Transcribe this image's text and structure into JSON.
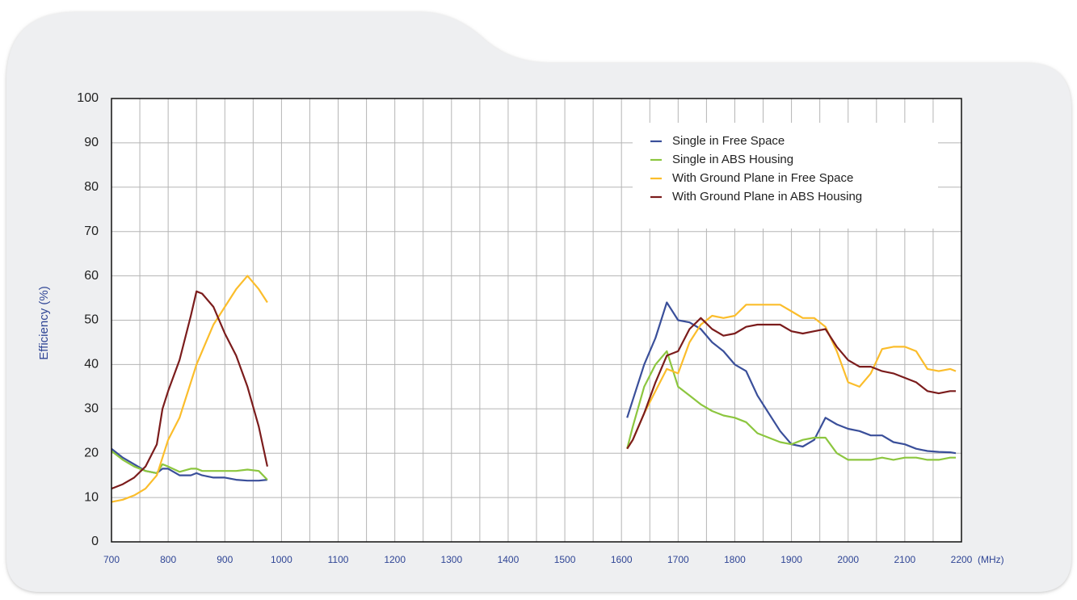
{
  "chart_data": {
    "type": "line",
    "y_label": "Efficiency (%)",
    "x_unit": "(MHz)",
    "xlim": [
      700,
      2200
    ],
    "xticks": [
      700,
      800,
      900,
      1000,
      1100,
      1200,
      1300,
      1400,
      1500,
      1600,
      1700,
      1800,
      1900,
      2000,
      2100,
      2200
    ],
    "x_minor_ticks": [
      750,
      850,
      950,
      1050,
      1150,
      1250,
      1350,
      1450,
      1550,
      1650,
      1750,
      1850,
      1950,
      2050,
      2150
    ],
    "ylim": [
      0,
      100
    ],
    "yticks": [
      0,
      10,
      20,
      30,
      40,
      50,
      60,
      70,
      80,
      90,
      100
    ],
    "grid": true,
    "legend": "upper right",
    "x": [
      700,
      720,
      740,
      760,
      780,
      790,
      800,
      820,
      840,
      850,
      860,
      880,
      900,
      920,
      940,
      960,
      975,
      1300,
      1610,
      1620,
      1640,
      1660,
      1680,
      1700,
      1720,
      1740,
      1760,
      1780,
      1800,
      1820,
      1840,
      1860,
      1880,
      1900,
      1920,
      1940,
      1960,
      1980,
      2000,
      2020,
      2040,
      2060,
      2080,
      2100,
      2120,
      2140,
      2160,
      2180,
      2190
    ],
    "series": [
      {
        "name": "Single in Free Space",
        "color": "#3a4f9a",
        "values": [
          21,
          19,
          17.5,
          16,
          15.5,
          16.5,
          16.5,
          15,
          15,
          15.5,
          15,
          14.5,
          14.5,
          14,
          13.8,
          13.8,
          14,
          null,
          28,
          32,
          40,
          46,
          54,
          50,
          49.5,
          48,
          45,
          43,
          40,
          38.5,
          33,
          29,
          25,
          22,
          21.5,
          23,
          28,
          26.5,
          25.5,
          25,
          24,
          24,
          22.5,
          22,
          21,
          20.5,
          20.3,
          20.2,
          20
        ]
      },
      {
        "name": "Single in ABS Housing",
        "color": "#8cc63f",
        "values": [
          20.5,
          18.5,
          17,
          16,
          15.5,
          17.5,
          17,
          15.8,
          16.5,
          16.5,
          16,
          16,
          16,
          16,
          16.3,
          16,
          14,
          null,
          21,
          26,
          35,
          40,
          43,
          35,
          33,
          31,
          29.5,
          28.5,
          28,
          27,
          24.5,
          23.5,
          22.5,
          22,
          23,
          23.5,
          23.5,
          20,
          18.5,
          18.5,
          18.5,
          19,
          18.5,
          19,
          19,
          18.5,
          18.5,
          19,
          19
        ]
      },
      {
        "name": "With Ground Plane in Free Space",
        "color": "#fbbd2b",
        "values": [
          9,
          9.5,
          10.5,
          12,
          15,
          19,
          23,
          28,
          36,
          40,
          43,
          49,
          53,
          57,
          60,
          57,
          54,
          null,
          21,
          23,
          29,
          34,
          39,
          38,
          45,
          49,
          51,
          50.5,
          51,
          53.5,
          53.5,
          53.5,
          53.5,
          52,
          50.5,
          50.5,
          48.5,
          43,
          36,
          35,
          38,
          43.5,
          44,
          44,
          43,
          39,
          38.5,
          39,
          38.5
        ]
      },
      {
        "name": "With Ground Plane in ABS Housing",
        "color": "#7b1c1c",
        "values": [
          12,
          13,
          14.5,
          17,
          22,
          30,
          34,
          41,
          51,
          56.5,
          56,
          53,
          47,
          42,
          35,
          26,
          17,
          null,
          21,
          23,
          29,
          36,
          42,
          43,
          48,
          50.5,
          48,
          46.5,
          47,
          48.5,
          49,
          49,
          49,
          47.5,
          47,
          47.5,
          48,
          44,
          41,
          39.5,
          39.5,
          38.5,
          38,
          37,
          36,
          34,
          33.5,
          34,
          34
        ]
      }
    ]
  }
}
